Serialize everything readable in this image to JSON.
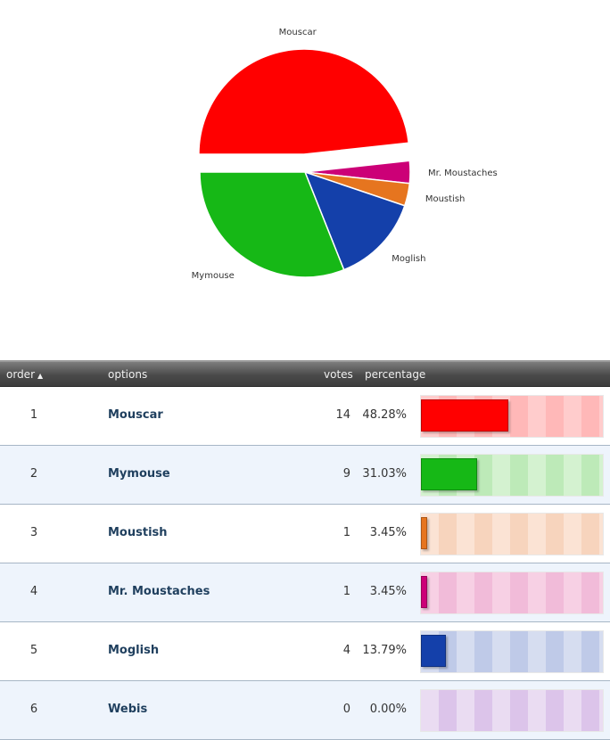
{
  "chart_data": {
    "type": "pie",
    "slices": [
      {
        "label": "Mouscar",
        "value": 48.28,
        "color": "#ff0000",
        "exploded": true
      },
      {
        "label": "Mr. Moustaches",
        "value": 3.45,
        "color": "#cc0077"
      },
      {
        "label": "Moustish",
        "value": 3.45,
        "color": "#e6751f"
      },
      {
        "label": "Moglish",
        "value": 13.79,
        "color": "#1440aa"
      },
      {
        "label": "Mymouse",
        "value": 31.03,
        "color": "#16b816"
      }
    ]
  },
  "table": {
    "headers": {
      "order": "order",
      "options": "options",
      "votes": "votes",
      "percentage": "percentage"
    },
    "rows": [
      {
        "order": "1",
        "option": "Mouscar",
        "votes": "14",
        "percentage": "48.28%",
        "fraction": 0.4828,
        "color": "#ff0000",
        "track_light": "#ffcccc",
        "track_dark": "#ffb8b8"
      },
      {
        "order": "2",
        "option": "Mymouse",
        "votes": "9",
        "percentage": "31.03%",
        "fraction": 0.3103,
        "color": "#16b816",
        "track_light": "#d4f2d0",
        "track_dark": "#bdeab8"
      },
      {
        "order": "3",
        "option": "Moustish",
        "votes": "1",
        "percentage": "3.45%",
        "fraction": 0.0345,
        "color": "#e6751f",
        "track_light": "#fbe3d4",
        "track_dark": "#f7d4bd"
      },
      {
        "order": "4",
        "option": "Mr. Moustaches",
        "votes": "1",
        "percentage": "3.45%",
        "fraction": 0.0345,
        "color": "#cc0077",
        "track_light": "#f7d0e4",
        "track_dark": "#f1bbd9"
      },
      {
        "order": "5",
        "option": "Moglish",
        "votes": "4",
        "percentage": "13.79%",
        "fraction": 0.1379,
        "color": "#1440aa",
        "track_light": "#d6ddf0",
        "track_dark": "#bfcae8"
      },
      {
        "order": "6",
        "option": "Webis",
        "votes": "0",
        "percentage": "0.00%",
        "fraction": 0.0,
        "color": "#9955bb",
        "track_light": "#eadcf2",
        "track_dark": "#dcc4ea"
      }
    ]
  }
}
